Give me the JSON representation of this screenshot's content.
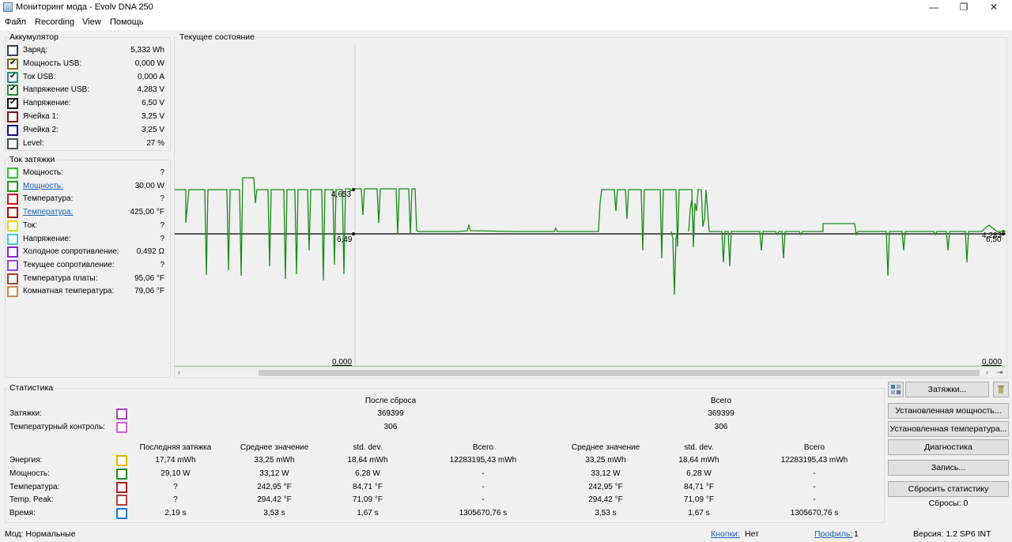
{
  "window": {
    "title": "Мониторинг мода - Evolv DNA 250",
    "minimize": "—",
    "maximize": "❐",
    "close": "✕"
  },
  "menu": [
    "Файл",
    "Recording",
    "View",
    "Помощь"
  ],
  "battery": {
    "title": "Аккумулятор",
    "rows": [
      {
        "label": "Заряд:",
        "value": "5,332 Wh",
        "checked": false,
        "color": "#2a4a60"
      },
      {
        "label": "Мощность USB:",
        "value": "0,000 W",
        "checked": true,
        "color": "#8a6a10"
      },
      {
        "label": "Ток USB:",
        "value": "0,000 A",
        "checked": true,
        "color": "#1a8a8a"
      },
      {
        "label": "Напряжение USB:",
        "value": "4,283 V",
        "checked": true,
        "color": "#2a8a2a"
      },
      {
        "label": "Напряжение:",
        "value": "6,50 V",
        "checked": true,
        "color": "#111111"
      },
      {
        "label": "Ячейка 1:",
        "value": "3,25 V",
        "checked": false,
        "color": "#8a1010"
      },
      {
        "label": "Ячейка 2:",
        "value": "3,25 V",
        "checked": false,
        "color": "#10108a"
      },
      {
        "label": "Level:",
        "value": "27 %",
        "checked": false,
        "color": "#3a5a50"
      }
    ]
  },
  "puff": {
    "title": "Ток затяжки",
    "rows": [
      {
        "label": "Мощность:",
        "value": "?",
        "link": false,
        "color": "#22cc22"
      },
      {
        "label": "Мощность:",
        "value": "30,00 W",
        "link": true,
        "color": "#1a9a1a"
      },
      {
        "label": "Температура:",
        "value": "?",
        "link": false,
        "color": "#dd1111"
      },
      {
        "label": "Температура:",
        "value": "425,00 °F",
        "link": true,
        "color": "#aa1111"
      },
      {
        "label": "Ток:",
        "value": "?",
        "link": false,
        "color": "#dddd00"
      },
      {
        "label": "Напряжение:",
        "value": "?",
        "link": false,
        "color": "#44cccc"
      },
      {
        "label": "Холодное сопротивление:",
        "value": "0,492 Ω",
        "link": false,
        "color": "#8a22cc"
      },
      {
        "label": "Текущее сопротивление:",
        "value": "?",
        "link": false,
        "color": "#9944dd"
      },
      {
        "label": "Температура платы:",
        "value": "95,06 °F",
        "link": false,
        "color": "#aa4433"
      },
      {
        "label": "Комнатная температура:",
        "value": "79,06 °F",
        "link": false,
        "color": "#cc8844"
      }
    ]
  },
  "chart": {
    "title": "Текущее состояние",
    "labels": {
      "upper_left": "4,653",
      "lower_left": "6,49",
      "bottom_left": "0,000",
      "upper_right": "4,283",
      "lower_right": "6,50",
      "bottom_right": "0,000"
    },
    "scroll_left": "‹",
    "scroll_right": "›",
    "scroll_end": "⇥"
  },
  "chart_data": {
    "type": "line",
    "series": [
      {
        "color": "#1a8a1a"
      },
      {
        "color": "#000000"
      }
    ]
  },
  "stats": {
    "title": "Статистика",
    "after_reset": "После сброса",
    "total": "Всего",
    "puffs": {
      "label": "Затяжки:",
      "after": "369399",
      "total": "369399",
      "color": "#aa44bb"
    },
    "temp_control": {
      "label": "Температурный контроль:",
      "after": "306",
      "total": "306",
      "color": "#cc66cc"
    },
    "headers": [
      "Последняя затяжка",
      "Среднее значение",
      "std. dev.",
      "Всего",
      "Среднее значение",
      "std. dev.",
      "Всего"
    ],
    "rows": [
      {
        "label": "Энергия:",
        "color": "#ddbb00",
        "values": [
          "17,74 mWh",
          "33,25 mWh",
          "18,64 mWh",
          "12283195,43 mWh",
          "33,25 mWh",
          "18,64 mWh",
          "12283195,43 mWh"
        ]
      },
      {
        "label": "Мощность:",
        "color": "#2a8a2a",
        "values": [
          "29,10 W",
          "33,12 W",
          "6,28 W",
          "-",
          "33,12 W",
          "6,28 W",
          "-"
        ]
      },
      {
        "label": "Температура:",
        "color": "#aa2222",
        "values": [
          "?",
          "242,95 °F",
          "84,71 °F",
          "-",
          "242,95 °F",
          "84,71 °F",
          "-"
        ]
      },
      {
        "label": "Temp. Peak:",
        "color": "#aa4444",
        "values": [
          "?",
          "294,42 °F",
          "71,09 °F",
          "-",
          "294,42 °F",
          "71,09 °F",
          "-"
        ]
      },
      {
        "label": "Время:",
        "color": "#2277cc",
        "values": [
          "2,19 s",
          "3,53 s",
          "1,67 s",
          "1305670,76 s",
          "3,53 s",
          "1,67 s",
          "1305670,76 s"
        ]
      }
    ]
  },
  "buttons": {
    "puffs": "Затяжки...",
    "set_power": "Установленная мощность...",
    "set_temp": "Установленная температура...",
    "diagnostics": "Диагностика",
    "record": "Запись...",
    "reset_stats": "Сбросить статистику",
    "resets": "Сбросы: 0"
  },
  "status": {
    "mode": "Мод: Нормальные",
    "buttons_label": "Кнопки:",
    "buttons_value": "Нет",
    "profile_label": "Профиль:",
    "profile_value": "1",
    "version": "Версия: 1.2 SP6 INT"
  }
}
